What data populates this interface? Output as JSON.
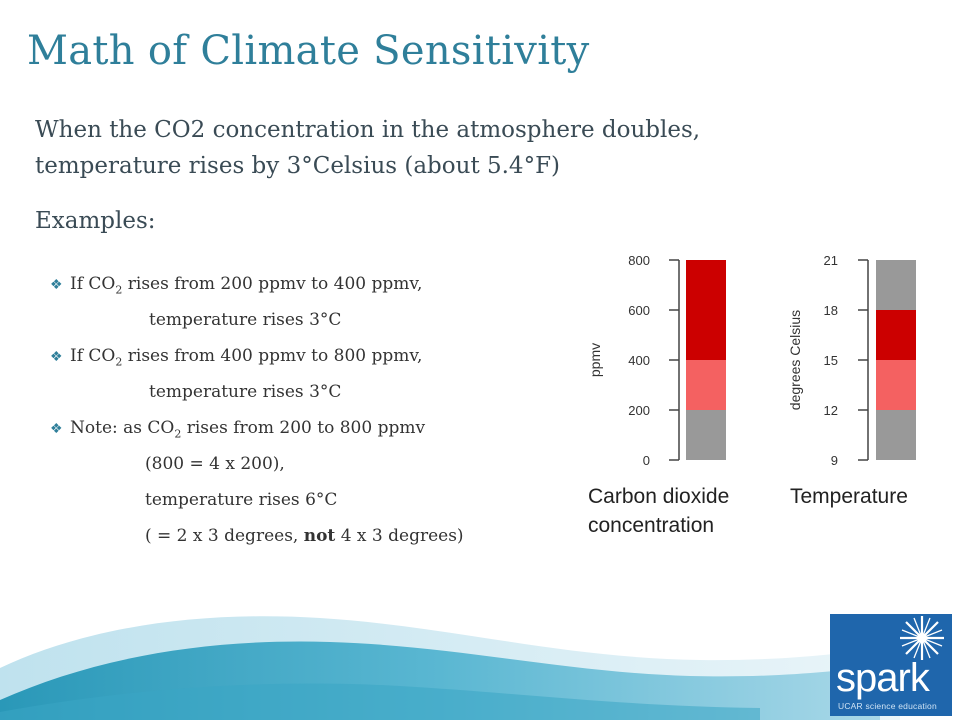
{
  "title": "Math of Climate Sensitivity",
  "intro_line1": "When the CO2 concentration in the atmosphere doubles,",
  "intro_line2": "temperature rises by 3°Celsius (about 5.4°F)",
  "examples_label": "Examples:",
  "bullets": {
    "b1_pre": "If CO",
    "b1_sub": "2",
    "b1_post": " rises from 200 ppmv to 400 ppmv,",
    "b1_cont": "temperature rises 3°C",
    "b2_pre": "If CO",
    "b2_sub": "2",
    "b2_post": " rises from 400 ppmv to 800 ppmv,",
    "b2_cont": "temperature rises 3°C",
    "b3_pre": "Note: as CO",
    "b3_sub": "2",
    "b3_post": " rises from 200 to 800 ppmv",
    "b3_cont1": "(800 = 4 x 200),",
    "b3_cont2": "temperature rises 6°C",
    "b3_cont3_pre": "( = 2 x 3 degrees, ",
    "b3_cont3_bold": "not",
    "b3_cont3_post": " 4 x 3 degrees)"
  },
  "logo": {
    "word": "spark",
    "subtitle": "UCAR science education"
  },
  "chart_data": [
    {
      "type": "bar",
      "title": "Carbon dioxide concentration",
      "title_line1": "Carbon dioxide",
      "title_line2": "concentration",
      "ylabel": "ppmv",
      "ylim": [
        0,
        800
      ],
      "ticks": [
        0,
        200,
        400,
        600,
        800
      ],
      "segments": [
        {
          "from": 0,
          "to": 200,
          "color": "#999999"
        },
        {
          "from": 200,
          "to": 400,
          "color": "#f46161"
        },
        {
          "from": 400,
          "to": 800,
          "color": "#cc0000"
        }
      ]
    },
    {
      "type": "bar",
      "title": "Temperature",
      "ylabel": "degrees Celsius",
      "ylim": [
        9,
        21
      ],
      "ticks": [
        9,
        12,
        15,
        18,
        21
      ],
      "segments": [
        {
          "from": 9,
          "to": 12,
          "color": "#999999"
        },
        {
          "from": 12,
          "to": 15,
          "color": "#f46161"
        },
        {
          "from": 15,
          "to": 18,
          "color": "#cc0000"
        },
        {
          "from": 18,
          "to": 21,
          "color": "#999999"
        }
      ]
    }
  ]
}
